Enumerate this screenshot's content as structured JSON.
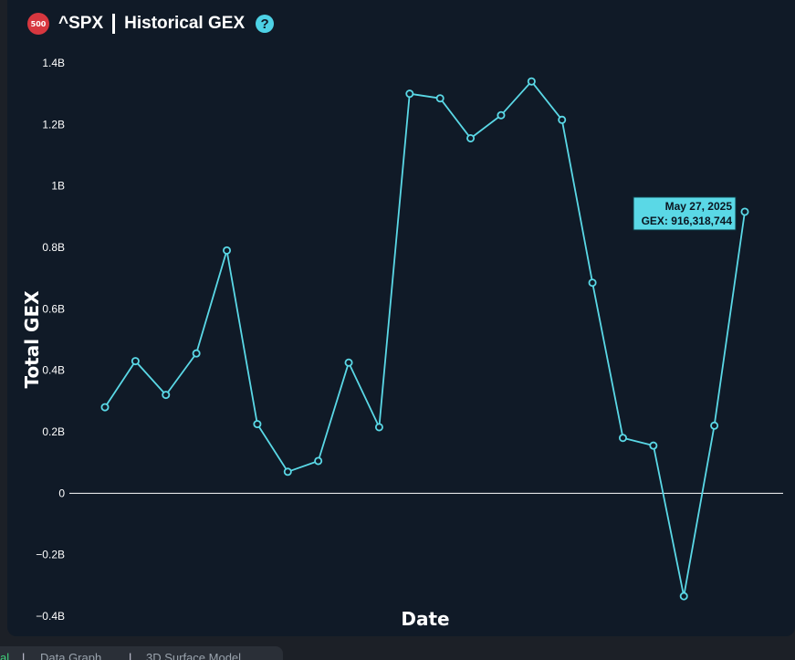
{
  "header": {
    "badge": "500",
    "ticker": "^SPX",
    "title": "Historical GEX",
    "help": "?"
  },
  "chart_data": {
    "type": "line",
    "xlabel": "Date",
    "ylabel": "Total GEX",
    "ylim": [
      -0.4,
      1.4
    ],
    "yticks": [
      {
        "value": 1.4,
        "label": "1.4B"
      },
      {
        "value": 1.2,
        "label": "1.2B"
      },
      {
        "value": 1.0,
        "label": "1B"
      },
      {
        "value": 0.8,
        "label": "0.8B"
      },
      {
        "value": 0.6,
        "label": "0.6B"
      },
      {
        "value": 0.4,
        "label": "0.4B"
      },
      {
        "value": 0.2,
        "label": "0.2B"
      },
      {
        "value": 0.0,
        "label": "0"
      },
      {
        "value": -0.2,
        "label": "−0.2B"
      },
      {
        "value": -0.4,
        "label": "−0.4B"
      }
    ],
    "grid": false,
    "line_color": "#5ad8e6",
    "series": [
      {
        "values": [
          0.28,
          0.43,
          0.32,
          0.455,
          0.79,
          0.225,
          0.07,
          0.105,
          0.425,
          0.215,
          1.3,
          1.285,
          1.155,
          1.23,
          1.34,
          1.215,
          0.685,
          0.18,
          0.155,
          -0.335,
          0.22,
          0.916
        ]
      }
    ],
    "tooltip": {
      "date": "May 27, 2025",
      "value_text": "GEX: 916,318,744"
    }
  },
  "tabs": [
    {
      "label": "al",
      "active": true
    },
    {
      "label": "Data Graph",
      "active": false
    },
    {
      "label": "3D Surface Model",
      "active": false
    }
  ],
  "colors": {
    "panel_bg": "#101a27",
    "accent": "#5ad8e6",
    "badge": "#d7373f"
  }
}
